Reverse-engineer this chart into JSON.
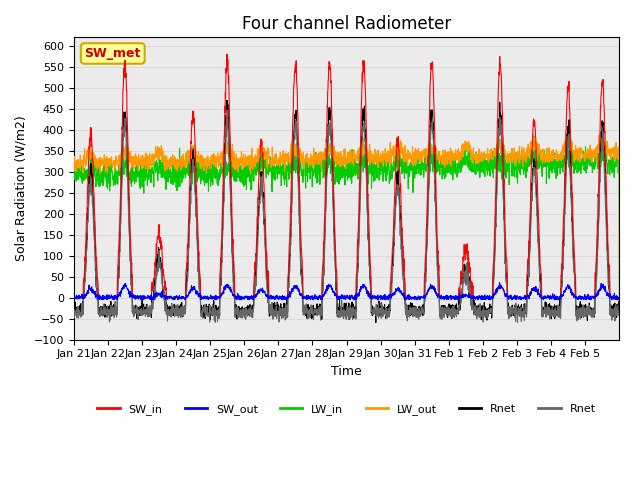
{
  "title": "Four channel Radiometer",
  "xlabel": "Time",
  "ylabel": "Solar Radiation (W/m2)",
  "ylim": [
    -100,
    620
  ],
  "yticks": [
    -100,
    -50,
    0,
    50,
    100,
    150,
    200,
    250,
    300,
    350,
    400,
    450,
    500,
    550,
    600
  ],
  "x_labels": [
    "Jan 21",
    "Jan 22",
    "Jan 23",
    "Jan 24",
    "Jan 25",
    "Jan 26",
    "Jan 27",
    "Jan 28",
    "Jan 29",
    "Jan 30",
    "Jan 31",
    "Feb 1",
    "Feb 2",
    "Feb 3",
    "Feb 4",
    "Feb 5"
  ],
  "n_days": 16,
  "annotation_text": "SW_met",
  "annotation_bg": "#FFFF99",
  "annotation_border": "#CCAA00",
  "annotation_text_color": "#CC0000",
  "colors": {
    "SW_in": "#FF0000",
    "SW_out": "#0000FF",
    "LW_in": "#00CC00",
    "LW_out": "#FF9900",
    "Rnet_black": "#000000",
    "Rnet_dark": "#666666"
  },
  "legend_labels": [
    "SW_in",
    "SW_out",
    "LW_in",
    "LW_out",
    "Rnet",
    "Rnet"
  ],
  "legend_colors": [
    "#FF0000",
    "#0000FF",
    "#00CC00",
    "#FF9900",
    "#000000",
    "#666666"
  ]
}
